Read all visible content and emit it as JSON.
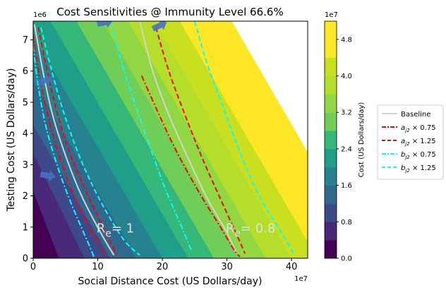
{
  "chart_data": {
    "type": "heatmap",
    "title": "Cost Sensitivities @ Immunity Level 66.6%",
    "xlabel": "Social Distance Cost (US Dollars/day)",
    "ylabel": "Testing Cost (US Dollars/day)",
    "x_multiplier": "1e7",
    "y_multiplier": "1e6",
    "xlim": [
      0,
      4.25
    ],
    "ylim": [
      0,
      7.6
    ],
    "x_ticks": [
      0,
      1,
      2,
      3,
      4
    ],
    "x_tick_labels": [
      "0",
      "10",
      "20",
      "30",
      "40"
    ],
    "y_ticks": [
      0,
      1,
      2,
      3,
      4,
      5,
      6,
      7
    ],
    "y_tick_labels": [
      "0",
      "1",
      "2",
      "3",
      "4",
      "5",
      "6",
      "7"
    ],
    "cost_field": {
      "base": 0,
      "per_x_unit": 1.0,
      "per_y_unit": 0.28
    },
    "colorbar": {
      "label": "Cost (US Dollars/day)",
      "multiplier": "1e7",
      "min": 0,
      "max": 5.2,
      "levels": [
        0,
        0.4,
        0.8,
        1.2,
        1.6,
        2.0,
        2.4,
        2.8,
        3.2,
        3.6,
        4.0,
        4.4,
        4.8,
        5.2
      ],
      "colors": [
        "#440154",
        "#482878",
        "#3e4989",
        "#31688e",
        "#26828e",
        "#1f9e89",
        "#35b779",
        "#6ece58",
        "#90d743",
        "#b5de2b",
        "#c8e020",
        "#fde725",
        "#fde725"
      ],
      "ticks": [
        0.0,
        0.8,
        1.6,
        2.4,
        3.2,
        4.0,
        4.8
      ],
      "tick_labels": [
        "0.0",
        "0.8",
        "1.6",
        "2.4",
        "3.2",
        "4.0",
        "4.8"
      ]
    },
    "legend_position": "right",
    "legend": [
      {
        "label": "Baseline",
        "color": "#d3d3d3",
        "dash": "solid"
      },
      {
        "label": "a_j2 × 0.75",
        "color": "#ff0000",
        "dash": "dashdot"
      },
      {
        "label": "a_j2 × 1.25",
        "color": "#ff0000",
        "dash": "dashed"
      },
      {
        "label": "b_j2 × 0.75",
        "color": "#00ffff",
        "dash": "dashdot"
      },
      {
        "label": "b_j2 × 1.25",
        "color": "#00ffff",
        "dash": "dashed"
      }
    ],
    "series": [
      {
        "group": "Re=1",
        "style": 0,
        "points": [
          [
            0.02,
            7.5
          ],
          [
            0.15,
            6.0
          ],
          [
            0.3,
            4.6
          ],
          [
            0.5,
            3.3
          ],
          [
            0.75,
            2.0
          ],
          [
            1.05,
            0.8
          ],
          [
            1.25,
            0.1
          ]
        ]
      },
      {
        "group": "Re=1",
        "style": 1,
        "points": [
          [
            0.0,
            7.2
          ],
          [
            0.1,
            5.8
          ],
          [
            0.25,
            4.4
          ],
          [
            0.45,
            3.0
          ],
          [
            0.7,
            1.7
          ],
          [
            1.0,
            0.5
          ],
          [
            1.15,
            0.0
          ]
        ]
      },
      {
        "group": "Re=1",
        "style": 2,
        "points": [
          [
            0.08,
            7.4
          ],
          [
            0.22,
            6.0
          ],
          [
            0.38,
            4.6
          ],
          [
            0.58,
            3.3
          ],
          [
            0.85,
            2.0
          ],
          [
            1.15,
            0.7
          ],
          [
            1.3,
            0.1
          ]
        ]
      },
      {
        "group": "Re=1",
        "style": 3,
        "points": [
          [
            0.0,
            6.8
          ],
          [
            0.08,
            5.5
          ],
          [
            0.2,
            4.2
          ],
          [
            0.4,
            2.8
          ],
          [
            0.62,
            1.6
          ],
          [
            0.85,
            0.5
          ],
          [
            0.95,
            0.0
          ]
        ]
      },
      {
        "group": "Re=1",
        "style": 4,
        "points": [
          [
            0.12,
            7.4
          ],
          [
            0.3,
            5.9
          ],
          [
            0.5,
            4.5
          ],
          [
            0.75,
            3.1
          ],
          [
            1.05,
            1.8
          ],
          [
            1.4,
            0.6
          ],
          [
            1.65,
            0.1
          ]
        ]
      },
      {
        "group": "Re=0.8",
        "style": 0,
        "points": [
          [
            1.65,
            7.6
          ],
          [
            1.85,
            6.0
          ],
          [
            2.1,
            4.6
          ],
          [
            2.4,
            3.2
          ],
          [
            2.7,
            1.9
          ],
          [
            2.98,
            0.9
          ],
          [
            3.15,
            0.15
          ]
        ]
      },
      {
        "group": "Re=0.8",
        "style": 1,
        "points": [
          [
            1.68,
            5.85
          ],
          [
            1.95,
            4.6
          ],
          [
            2.25,
            3.3
          ],
          [
            2.6,
            2.0
          ],
          [
            2.9,
            1.0
          ],
          [
            3.1,
            0.3
          ],
          [
            3.2,
            0.05
          ]
        ]
      },
      {
        "group": "Re=0.8",
        "style": 2,
        "points": [
          [
            1.9,
            7.4
          ],
          [
            2.1,
            6.0
          ],
          [
            2.35,
            4.6
          ],
          [
            2.62,
            3.2
          ],
          [
            2.9,
            1.9
          ],
          [
            3.12,
            0.9
          ],
          [
            3.28,
            0.15
          ]
        ]
      },
      {
        "group": "Re=0.8",
        "style": 3,
        "points": [
          [
            1.2,
            7.6
          ],
          [
            1.38,
            6.2
          ],
          [
            1.6,
            4.8
          ],
          [
            1.82,
            3.5
          ],
          [
            2.05,
            2.2
          ],
          [
            2.3,
            1.0
          ],
          [
            2.45,
            0.25
          ]
        ]
      },
      {
        "group": "Re=0.8",
        "style": 4,
        "points": [
          [
            2.5,
            7.6
          ],
          [
            2.7,
            6.2
          ],
          [
            2.95,
            4.8
          ],
          [
            3.2,
            3.4
          ],
          [
            3.5,
            2.0
          ],
          [
            3.85,
            0.8
          ],
          [
            4.05,
            0.1
          ]
        ]
      }
    ],
    "annotations": [
      {
        "text": "R",
        "subscript": "e",
        "suffix": "= 1",
        "x": 0.98,
        "y": 0.82
      },
      {
        "text": "R",
        "subscript": "e",
        "suffix": "= 0.8",
        "x": 2.98,
        "y": 0.82
      }
    ],
    "arrows": [
      {
        "x": 1.1,
        "y": 7.55,
        "angle": -10
      },
      {
        "x": 1.95,
        "y": 7.45,
        "angle": -25
      },
      {
        "x": 0.18,
        "y": 5.7,
        "angle": -15
      },
      {
        "x": 0.22,
        "y": 2.65,
        "angle": 10
      }
    ],
    "arrow_color": "#4472c4"
  }
}
